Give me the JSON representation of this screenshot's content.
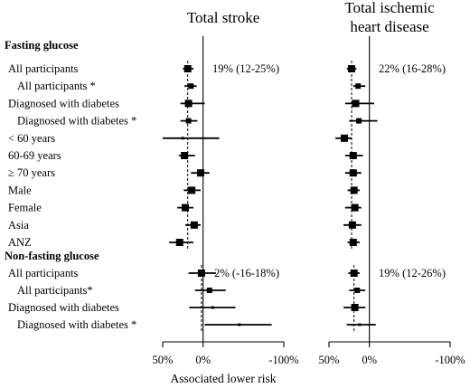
{
  "chart_data": {
    "type": "forest",
    "xlabel": "Associated lower risk",
    "xlim": [
      50,
      -100
    ],
    "xticks": [
      "50%",
      "0%",
      "-100%"
    ],
    "panels": [
      {
        "title_lines": [
          "Total stroke"
        ]
      },
      {
        "title_lines": [
          "Total ischemic",
          "heart disease"
        ]
      }
    ],
    "sections": [
      {
        "title": "Fasting glucose",
        "rows": [
          {
            "label": "All participants",
            "indent": 0,
            "stroke": [
              19,
              12,
              25
            ],
            "ihd": [
              22,
              16,
              28
            ]
          },
          {
            "label": "All participants *",
            "indent": 1,
            "stroke": [
              15,
              8,
              23
            ],
            "ihd": [
              14,
              5,
              20
            ]
          },
          {
            "label": "Diagnosed with diabetes",
            "indent": 0,
            "stroke": [
              18,
              -2,
              28
            ],
            "ihd": [
              17,
              -6,
              30
            ]
          },
          {
            "label": "Diagnosed with diabetes *",
            "indent": 1,
            "stroke": [
              18,
              7,
              28
            ],
            "ihd": [
              13,
              -10,
              25
            ]
          },
          {
            "label": "< 60 years",
            "indent": 0,
            "stroke": [
              25,
              -20,
              50
            ],
            "ihd": [
              31,
              22,
              42
            ]
          },
          {
            "label": "60-69 years",
            "indent": 0,
            "stroke": [
              23,
              10,
              30
            ],
            "ihd": [
              20,
              8,
              30
            ]
          },
          {
            "label": "≥ 70 years",
            "indent": 0,
            "stroke": [
              3,
              -8,
              15
            ],
            "ihd": [
              20,
              10,
              30
            ]
          },
          {
            "label": "Male",
            "indent": 0,
            "stroke": [
              14,
              3,
              24
            ],
            "ihd": [
              19,
              12,
              27
            ]
          },
          {
            "label": "Female",
            "indent": 0,
            "stroke": [
              22,
              12,
              32
            ],
            "ihd": [
              18,
              10,
              30
            ]
          },
          {
            "label": "Asia",
            "indent": 0,
            "stroke": [
              11,
              3,
              22
            ],
            "ihd": [
              21,
              10,
              32
            ]
          },
          {
            "label": "ANZ",
            "indent": 0,
            "stroke": [
              29,
              12,
              42
            ],
            "ihd": [
              20,
              12,
              27
            ]
          }
        ],
        "summary_text": {
          "stroke": "19% (12-25%)",
          "ihd": "22% (16-28%)"
        }
      },
      {
        "title": "Non-fasting glucose",
        "rows": [
          {
            "label": "All participants",
            "indent": 0,
            "stroke": [
              2,
              -16,
              18
            ],
            "ihd": [
              19,
              12,
              26
            ]
          },
          {
            "label": "All participants*",
            "indent": 1,
            "stroke": [
              -8,
              -28,
              10
            ],
            "ihd": [
              15,
              5,
              25
            ]
          },
          {
            "label": "Diagnosed with diabetes",
            "indent": 0,
            "stroke": [
              -12,
              -40,
              17
            ],
            "ihd": [
              18,
              5,
              32
            ]
          },
          {
            "label": "Diagnosed with diabetes *",
            "indent": 1,
            "stroke": [
              -45,
              -85,
              -2
            ],
            "ihd": [
              12,
              -8,
              28
            ]
          }
        ],
        "summary_text": {
          "stroke": "2% (-16-18%)",
          "ihd": "19% (12-26%)"
        }
      }
    ]
  }
}
